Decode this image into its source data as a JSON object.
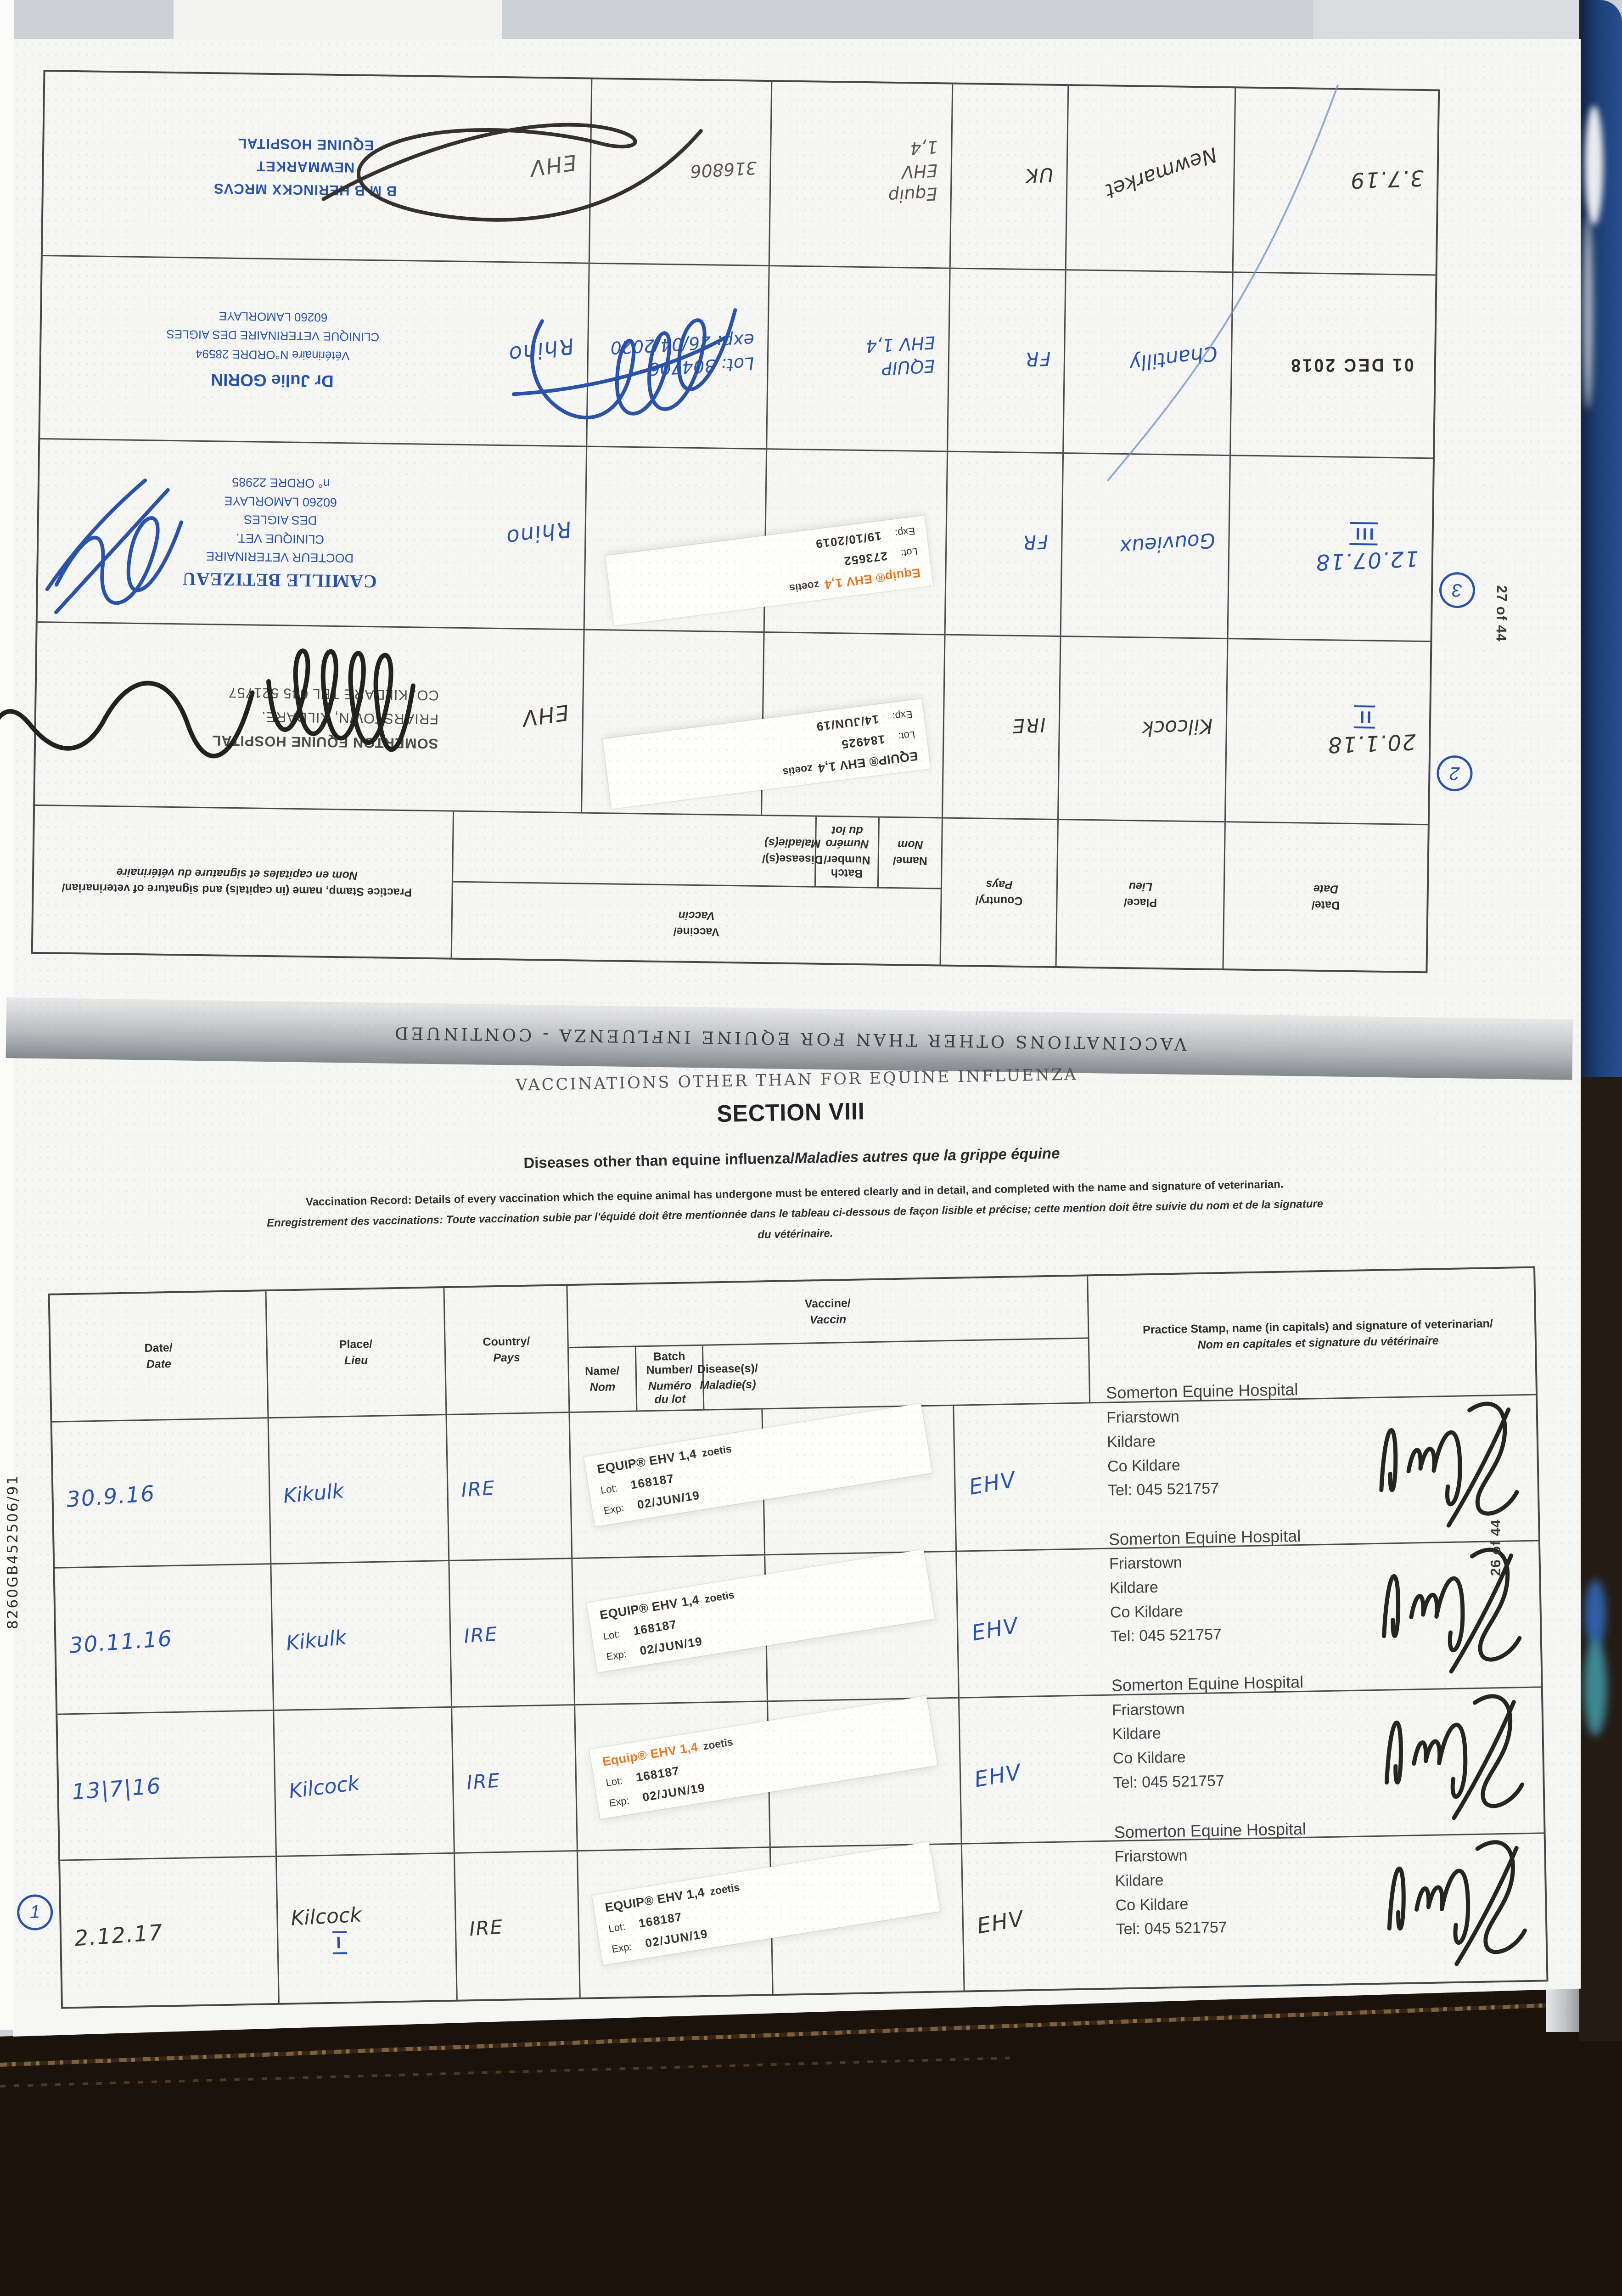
{
  "colors": {
    "blue_ink": "#2a52a8",
    "black_ink": "#39352f",
    "gray_ink": "#5a554d",
    "zoetis_orange": "#e87722",
    "cover_navy": "#1d4079",
    "cover_brown": "#241b15"
  },
  "banner_continued": "VACCINATIONS OTHER THAN FOR EQUINE INFLUENZA - CONTINUED",
  "banner_plain": "VACCINATIONS OTHER THAN FOR EQUINE INFLUENZA",
  "section": {
    "title": "SECTION VIII",
    "subtitle_en": "Diseases other than equine influenza/",
    "subtitle_fr": "Maladies autres que la grippe équine",
    "note_en": "Vaccination Record: Details of every vaccination which the equine animal has undergone must be entered clearly and in detail, and completed with the name and signature of veterinarian.",
    "note_fr": "Enregistrement des vaccinations: Toute vaccination subie par l'équidé doit être mentionnée dans le tableau ci-dessous de façon lisible et précise; cette mention doit être suivie du nom et de la signature",
    "note_fr_tail": "du vétérinaire."
  },
  "table_headers": {
    "date": "Date/",
    "date_fr": "Date",
    "place": "Place/",
    "place_fr": "Lieu",
    "country": "Country/",
    "country_fr": "Pays",
    "vaccine": "Vaccine/",
    "vaccine_fr": "Vaccin",
    "name": "Name/",
    "name_fr": "Nom",
    "batch": "Batch Number/",
    "batch_fr": "Numéro du lot",
    "disease": "Disease(s)/",
    "disease_fr": "Maladie(s)",
    "stamp": "Practice Stamp, name (in capitals) and signature of veterinarian/",
    "stamp_fr": "Nom en capitales et signature du vétérinaire"
  },
  "page26": {
    "page_label": "26 of 44",
    "doc_number": "8260GB452506/91",
    "rows": [
      {
        "date": "30.9.16",
        "ink": "blue",
        "place": "Kikulk",
        "country": "IRE",
        "sticker": {
          "variant": "mono",
          "brand": "EQUIP® EHV 1,4",
          "suffix": "zoetis",
          "lot_label": "Lot:",
          "lot": "168187",
          "exp_label": "Exp:",
          "exp": "02/JUN/19"
        },
        "disease": "EHV",
        "disease_ink": "blue",
        "stamp": {
          "variant": "somerton",
          "lines": [
            "Somerton Equine Hospital",
            "Friarstown",
            "Kildare",
            "Co Kildare",
            "Tel: 045 521757"
          ]
        },
        "signature": "pms"
      },
      {
        "date": "30.11.16",
        "ink": "blue",
        "place": "Kikulk",
        "country": "IRE",
        "sticker": {
          "variant": "mono",
          "brand": "EQUIP® EHV 1,4",
          "suffix": "zoetis",
          "lot_label": "Lot:",
          "lot": "168187",
          "exp_label": "Exp:",
          "exp": "02/JUN/19"
        },
        "disease": "EHV",
        "disease_ink": "blue",
        "stamp": {
          "variant": "somerton",
          "lines": [
            "Somerton Equine Hospital",
            "Friarstown",
            "Kildare",
            "Co Kildare",
            "Tel: 045 521757"
          ]
        },
        "signature": "pms"
      },
      {
        "date": "13|7|16",
        "ink": "blue",
        "place": "Kilcock",
        "country": "IRE",
        "sticker": {
          "variant": "orange",
          "brand": "Equip® EHV 1,4",
          "suffix": "zoetis",
          "lot_label": "Lot:",
          "lot": "168187",
          "exp_label": "Exp:",
          "exp": "02/JUN/19"
        },
        "disease": "EHV",
        "disease_ink": "blue",
        "stamp": {
          "variant": "somerton",
          "lines": [
            "Somerton Equine Hospital",
            "Friarstown",
            "Kildare",
            "Co Kildare",
            "Tel: 045 521757"
          ]
        },
        "signature": "pms"
      },
      {
        "badge": "1",
        "date": "2.12.17",
        "ink": "black",
        "place": "Kilcock",
        "place_mark": "I",
        "country": "IRE",
        "sticker": {
          "variant": "mono",
          "brand": "EQUIP® EHV 1,4",
          "suffix": "zoetis",
          "lot_label": "Lot:",
          "lot": "168187",
          "exp_label": "Exp:",
          "exp": "02/JUN/19"
        },
        "disease": "EHV",
        "disease_ink": "black",
        "stamp": {
          "variant": "somerton",
          "lines": [
            "Somerton Equine Hospital",
            "Friarstown",
            "Kildare",
            "Co Kildare",
            "Tel: 045 521757"
          ]
        },
        "signature": "pms"
      }
    ]
  },
  "page27": {
    "page_label": "27 of 44",
    "rows": [
      {
        "badge": "2",
        "date": "20.1.18",
        "date_mark": "II",
        "ink": "black",
        "place": "Kilcock",
        "country": "IRE",
        "sticker": {
          "variant": "mono",
          "brand": "EQUIP® EHV 1,4",
          "suffix": "zoetis",
          "lot_label": "Lot:",
          "lot": "184925",
          "exp_label": "Exp:",
          "exp": "14/JUN/19"
        },
        "disease": "EHV",
        "disease_ink": "black",
        "stamp": {
          "variant": "somerton-caps",
          "lines": [
            "SOMERTON EQUINE HOSPITAL",
            "FRIARSTOWN, KILDARE.",
            "CO. KILDARE TEL 045 521757"
          ]
        },
        "signature": "scrawl-xl"
      },
      {
        "badge": "3",
        "date": "12.07.18",
        "date_mark": "III",
        "ink": "blue",
        "place": "Gouvieux",
        "country": "FR",
        "sticker": {
          "variant": "orange",
          "brand": "Equip® EHV 1,4",
          "suffix": "zoetis",
          "lot_label": "Lot:",
          "lot": "273652",
          "exp_label": "Exp:",
          "exp": "19/10/2019"
        },
        "disease": "Rhino",
        "disease_ink": "blue",
        "stamp": {
          "variant": "betizeau",
          "lines": [
            "CAMILLE BETIZEAU",
            "DOCTEUR VETERINAIRE",
            "CLINIQUE VET.",
            "DES AIGLES",
            "60260 LAMORLAYE",
            "n° ORDRE 22985"
          ]
        },
        "signature": "loops-blue"
      },
      {
        "date": "01 DEC 2018",
        "date_is_stamp": true,
        "place": "Chantilly",
        "country": "FR",
        "ink": "blue",
        "name_lines": [
          "EQUIP",
          "EHV 1,4"
        ],
        "batch_lines": [
          "Lot: 304706",
          "exp: 26/04/2020"
        ],
        "hw_ink": "blue",
        "disease": "Rhino",
        "disease_ink": "blue",
        "stamp": {
          "variant": "gorin",
          "lines": [
            "Dr Julie GORIN",
            "Vétérinaire N°ORDRE 28594",
            "CLINIQUE VETERINAIRE DES AIGLES",
            "60260 LAMORLAYE"
          ]
        },
        "signature": "loops-blue2"
      },
      {
        "date": "3.7.19",
        "ink": "black",
        "place": "Newmarket",
        "country": "UK",
        "name_lines": [
          "Equip",
          "EHV",
          "1,4"
        ],
        "batch_lines": [
          "316806"
        ],
        "hw_ink": "gray",
        "disease": "EHV",
        "disease_ink": "gray",
        "stamp": {
          "variant": "herinckx",
          "lines": [
            "B M B HERINCKX MRCVS",
            "NEWMARKET",
            "EQUINE HOSPITAL"
          ]
        },
        "signature": "scrawl-wide"
      }
    ]
  }
}
